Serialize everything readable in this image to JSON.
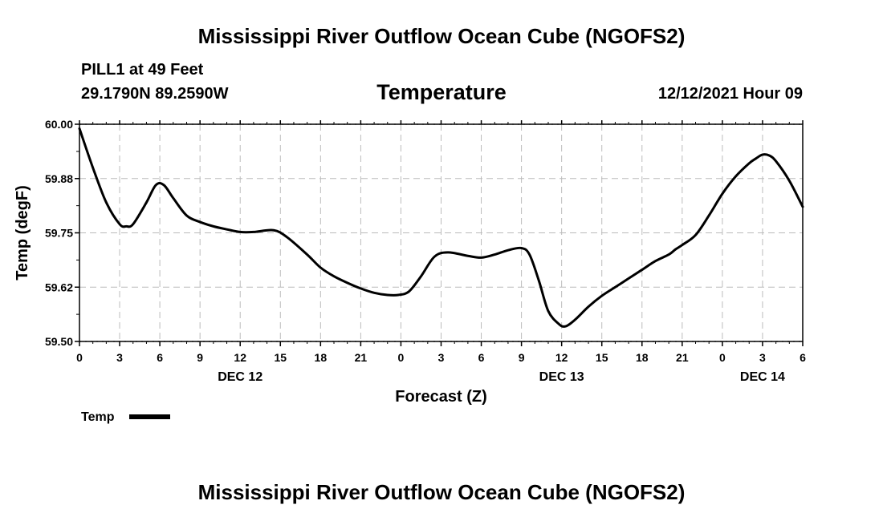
{
  "page": {
    "title_top": "Mississippi River Outflow Ocean Cube (NGOFS2)",
    "title_bottom": "Mississippi River Outflow Ocean Cube (NGOFS2)",
    "station": "PILL1 at 49 Feet",
    "coords": "29.1790N  89.2590W",
    "subtitle": "Temperature",
    "run_time": "12/12/2021 Hour 09"
  },
  "chart_data": {
    "type": "line",
    "title": "Temperature",
    "xlabel": "Forecast (Z)",
    "ylabel": "Temp (degF)",
    "xlim": [
      0,
      54
    ],
    "ylim": [
      59.5,
      60.0
    ],
    "grid": true,
    "y_ticks": [
      59.5,
      59.625,
      59.75,
      59.875,
      60.0
    ],
    "y_tick_labels": [
      "59.50",
      "59.62",
      "59.75",
      "59.88",
      "60.00"
    ],
    "x_ticks": [
      0,
      3,
      6,
      9,
      12,
      15,
      18,
      21,
      24,
      27,
      30,
      33,
      36,
      39,
      42,
      45,
      48,
      51,
      54
    ],
    "x_tick_labels": [
      "0",
      "3",
      "6",
      "9",
      "12",
      "15",
      "18",
      "21",
      "0",
      "3",
      "6",
      "9",
      "12",
      "15",
      "18",
      "21",
      "0",
      "3",
      "6"
    ],
    "date_labels": [
      {
        "x": 12,
        "label": "DEC 12"
      },
      {
        "x": 36,
        "label": "DEC 13"
      },
      {
        "x": 51,
        "label": "DEC 14"
      }
    ],
    "legend": {
      "position": "bottom-left",
      "entries": [
        "Temp"
      ]
    },
    "series": [
      {
        "name": "Temp",
        "color": "#000000",
        "x": [
          0,
          1,
          2,
          3,
          3.5,
          4,
          5,
          5.7,
          6.3,
          7,
          8,
          9,
          10,
          11,
          12,
          13,
          14.5,
          15.5,
          17,
          18,
          19,
          20,
          21,
          22,
          23,
          23.8,
          24.6,
          25.5,
          26.5,
          27.5,
          29,
          30,
          31,
          32,
          33,
          33.6,
          34.3,
          35,
          35.8,
          36.3,
          37,
          38,
          39,
          40,
          41,
          42,
          43,
          44,
          44.5,
          45,
          46,
          47,
          48,
          49,
          50,
          50.5,
          51,
          51.5,
          52,
          53,
          54
        ],
        "y": [
          59.99,
          59.9,
          59.82,
          59.77,
          59.765,
          59.77,
          59.82,
          59.86,
          59.86,
          59.83,
          59.79,
          59.775,
          59.765,
          59.758,
          59.752,
          59.752,
          59.756,
          59.74,
          59.7,
          59.67,
          59.65,
          59.635,
          59.622,
          59.612,
          59.607,
          59.607,
          59.615,
          59.65,
          59.695,
          59.705,
          59.697,
          59.693,
          59.7,
          59.71,
          59.715,
          59.7,
          59.64,
          59.57,
          59.54,
          59.535,
          59.55,
          59.58,
          59.605,
          59.625,
          59.645,
          59.665,
          59.685,
          59.7,
          59.712,
          59.722,
          59.745,
          59.79,
          59.84,
          59.88,
          59.91,
          59.921,
          59.93,
          59.928,
          59.915,
          59.87,
          59.81
        ]
      }
    ]
  }
}
